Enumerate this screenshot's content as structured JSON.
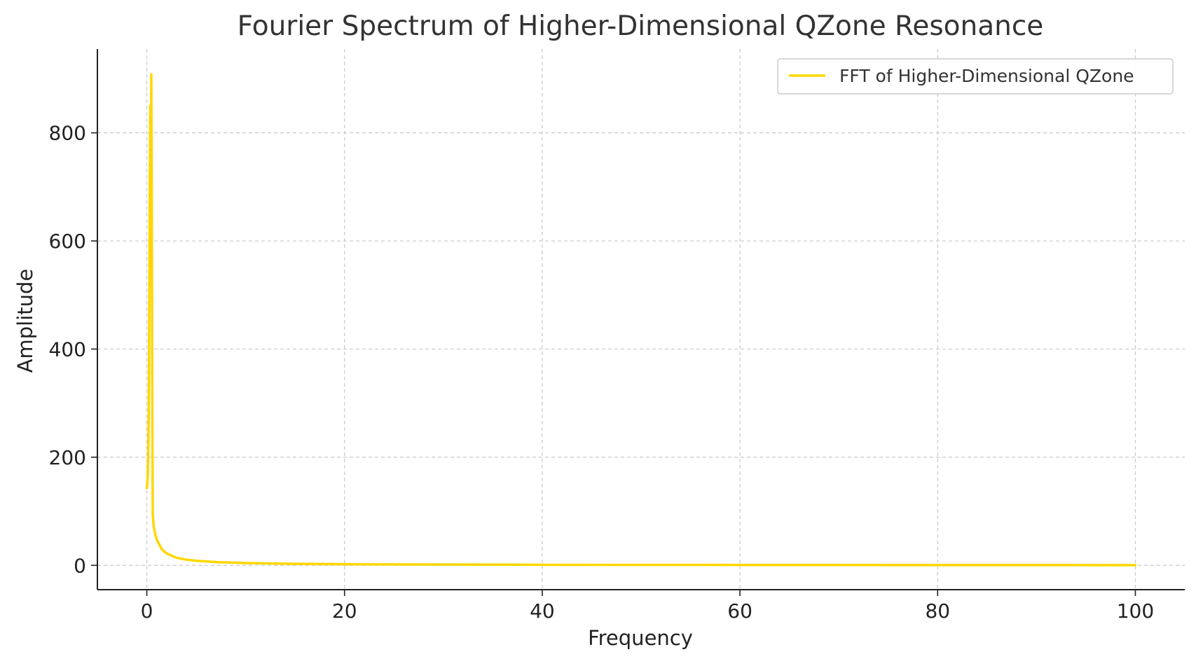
{
  "chart_data": {
    "type": "line",
    "title": "Fourier Spectrum of Higher-Dimensional QZone Resonance",
    "xlabel": "Frequency",
    "ylabel": "Amplitude",
    "xlim": [
      -5,
      105
    ],
    "ylim": [
      -45,
      955
    ],
    "xticks": [
      0,
      20,
      40,
      60,
      80,
      100
    ],
    "yticks": [
      0,
      200,
      400,
      600,
      800
    ],
    "grid": true,
    "legend_position": "top-right",
    "series": [
      {
        "name": "FFT of Higher-Dimensional QZone",
        "color": "#FFD700",
        "points": [
          [
            0.0,
            143
          ],
          [
            0.05,
            150
          ],
          [
            0.1,
            170
          ],
          [
            0.15,
            215
          ],
          [
            0.2,
            300
          ],
          [
            0.25,
            460
          ],
          [
            0.3,
            700
          ],
          [
            0.35,
            850
          ],
          [
            0.4,
            700
          ],
          [
            0.45,
            908
          ],
          [
            0.5,
            700
          ],
          [
            0.55,
            320
          ],
          [
            0.6,
            95
          ],
          [
            0.7,
            72
          ],
          [
            0.8,
            62
          ],
          [
            1.0,
            48
          ],
          [
            1.5,
            30
          ],
          [
            2.0,
            22
          ],
          [
            3.0,
            14
          ],
          [
            4.0,
            10.5
          ],
          [
            5.0,
            8.5
          ],
          [
            7.0,
            6
          ],
          [
            10.0,
            4.2
          ],
          [
            15.0,
            2.8
          ],
          [
            20.0,
            2.1
          ],
          [
            30.0,
            1.4
          ],
          [
            40.0,
            1.05
          ],
          [
            50.0,
            0.85
          ],
          [
            60.0,
            0.7
          ],
          [
            70.0,
            0.6
          ],
          [
            80.0,
            0.52
          ],
          [
            90.0,
            0.47
          ],
          [
            100.0,
            0.42
          ]
        ]
      }
    ]
  }
}
